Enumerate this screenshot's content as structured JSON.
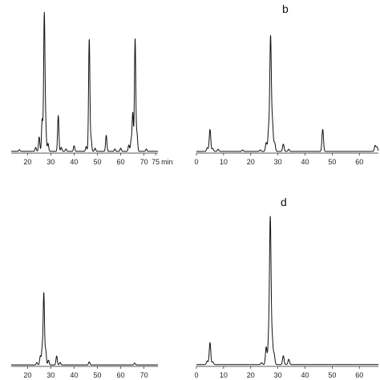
{
  "chart_data": [
    {
      "type": "line",
      "panel": "a",
      "panel_label": "",
      "xlabel": "min",
      "ylabel": "",
      "xlim": [
        13,
        76
      ],
      "ylim": [
        0,
        170
      ],
      "x_ticks": [
        20,
        30,
        40,
        50,
        60,
        70,
        75
      ],
      "tick_labels": [
        "20",
        "30",
        "40",
        "50",
        "60",
        "70",
        "75"
      ],
      "unit_label": "min",
      "peaks": [
        {
          "rt": 16.5,
          "h": 2
        },
        {
          "rt": 23.5,
          "h": 5
        },
        {
          "rt": 25.0,
          "h": 18
        },
        {
          "rt": 26.3,
          "h": 40
        },
        {
          "rt": 27.2,
          "h": 170
        },
        {
          "rt": 27.8,
          "h": 32
        },
        {
          "rt": 28.8,
          "h": 10
        },
        {
          "rt": 33.2,
          "h": 45
        },
        {
          "rt": 34.5,
          "h": 5
        },
        {
          "rt": 36.5,
          "h": 3
        },
        {
          "rt": 40.0,
          "h": 7
        },
        {
          "rt": 45.2,
          "h": 6
        },
        {
          "rt": 46.5,
          "h": 140
        },
        {
          "rt": 47.3,
          "h": 15
        },
        {
          "rt": 49.0,
          "h": 4
        },
        {
          "rt": 53.8,
          "h": 20
        },
        {
          "rt": 57.5,
          "h": 3
        },
        {
          "rt": 60.0,
          "h": 4
        },
        {
          "rt": 63.5,
          "h": 8
        },
        {
          "rt": 64.5,
          "h": 14
        },
        {
          "rt": 65.2,
          "h": 48
        },
        {
          "rt": 66.2,
          "h": 140
        },
        {
          "rt": 67.0,
          "h": 22
        },
        {
          "rt": 71.0,
          "h": 3
        }
      ]
    },
    {
      "type": "line",
      "panel": "b",
      "panel_label": "b",
      "xlabel": "",
      "ylabel": "",
      "xlim": [
        0,
        67
      ],
      "ylim": [
        0,
        170
      ],
      "x_ticks": [
        0,
        10,
        20,
        30,
        40,
        50,
        60
      ],
      "tick_labels": [
        "0",
        "10",
        "20",
        "30",
        "40",
        "50",
        "60"
      ],
      "unit_label": "",
      "peaks": [
        {
          "rt": 4.0,
          "h": 5
        },
        {
          "rt": 5.0,
          "h": 30
        },
        {
          "rt": 6.0,
          "h": 4
        },
        {
          "rt": 8.0,
          "h": 3
        },
        {
          "rt": 17.0,
          "h": 2
        },
        {
          "rt": 23.5,
          "h": 2
        },
        {
          "rt": 25.7,
          "h": 12
        },
        {
          "rt": 26.6,
          "h": 30
        },
        {
          "rt": 27.3,
          "h": 155
        },
        {
          "rt": 28.0,
          "h": 38
        },
        {
          "rt": 28.8,
          "h": 12
        },
        {
          "rt": 32.0,
          "h": 10
        },
        {
          "rt": 34.0,
          "h": 3
        },
        {
          "rt": 46.5,
          "h": 30
        },
        {
          "rt": 65.8,
          "h": 8
        },
        {
          "rt": 66.5,
          "h": 6
        }
      ]
    },
    {
      "type": "line",
      "panel": "c",
      "panel_label": "",
      "xlabel": "",
      "ylabel": "",
      "xlim": [
        13,
        76
      ],
      "ylim": [
        0,
        170
      ],
      "x_ticks": [
        20,
        30,
        40,
        50,
        60,
        70
      ],
      "tick_labels": [
        "20",
        "30",
        "40",
        "50",
        "60",
        "70"
      ],
      "unit_label": "",
      "peaks": [
        {
          "rt": 24.0,
          "h": 4
        },
        {
          "rt": 25.5,
          "h": 15
        },
        {
          "rt": 26.3,
          "h": 28
        },
        {
          "rt": 27.0,
          "h": 120
        },
        {
          "rt": 27.8,
          "h": 25
        },
        {
          "rt": 29.0,
          "h": 8
        },
        {
          "rt": 32.5,
          "h": 15
        },
        {
          "rt": 34.0,
          "h": 4
        },
        {
          "rt": 46.5,
          "h": 5
        },
        {
          "rt": 66.0,
          "h": 3
        }
      ]
    },
    {
      "type": "line",
      "panel": "d",
      "panel_label": "d",
      "xlabel": "",
      "ylabel": "",
      "xlim": [
        0,
        67
      ],
      "ylim": [
        0,
        170
      ],
      "x_ticks": [
        0,
        10,
        20,
        30,
        40,
        50,
        60
      ],
      "tick_labels": [
        "0",
        "10",
        "20",
        "30",
        "40",
        "50",
        "60"
      ],
      "unit_label": "",
      "peaks": [
        {
          "rt": 4.0,
          "h": 4
        },
        {
          "rt": 5.0,
          "h": 25
        },
        {
          "rt": 6.0,
          "h": 3
        },
        {
          "rt": 24.0,
          "h": 2
        },
        {
          "rt": 25.7,
          "h": 20
        },
        {
          "rt": 26.6,
          "h": 30
        },
        {
          "rt": 27.2,
          "h": 165
        },
        {
          "rt": 27.9,
          "h": 30
        },
        {
          "rt": 28.6,
          "h": 12
        },
        {
          "rt": 32.0,
          "h": 10
        },
        {
          "rt": 34.0,
          "h": 6
        }
      ]
    }
  ]
}
